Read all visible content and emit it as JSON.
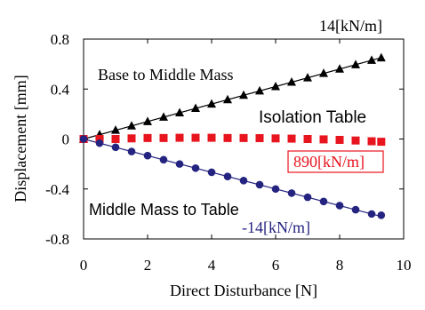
{
  "chart_data": {
    "type": "scatter",
    "xlabel": "Direct Disturbance [N]",
    "ylabel": "Displacement [mm]",
    "xlim": [
      0,
      10
    ],
    "ylim": [
      -0.8,
      0.8
    ],
    "xticks": [
      0,
      2,
      4,
      6,
      8,
      10
    ],
    "yticks": [
      0.8,
      0.4,
      0,
      -0.4,
      -0.8
    ],
    "xtick_labels": [
      "0",
      "2",
      "4",
      "6",
      "8",
      "10"
    ],
    "ytick_labels": [
      "0.8",
      "0.4",
      "0",
      "-0.4",
      "-0.8"
    ],
    "grid": false,
    "annotations": {
      "top_slope": "14[kN/m]",
      "base_to_middle": "Base to Middle Mass",
      "isolation_table": "Isolation Table",
      "table_slope": "890[kN/m]",
      "middle_to_table": "Middle Mass to Table",
      "bottom_slope": "-14[kN/m]"
    },
    "colors": {
      "base_to_middle": "#000000",
      "isolation_table": "#e8141e",
      "middle_to_table": "#242480"
    },
    "x": [
      0.0,
      0.5,
      1.0,
      1.5,
      2.0,
      2.5,
      3.0,
      3.5,
      4.0,
      4.5,
      5.0,
      5.5,
      6.0,
      6.5,
      7.0,
      7.5,
      8.0,
      8.5,
      9.0,
      9.3
    ],
    "series": [
      {
        "key": "base_to_middle",
        "marker": "triangle",
        "values": [
          0.0,
          0.035,
          0.07,
          0.105,
          0.14,
          0.175,
          0.21,
          0.245,
          0.28,
          0.315,
          0.35,
          0.385,
          0.42,
          0.455,
          0.49,
          0.525,
          0.56,
          0.595,
          0.63,
          0.65
        ]
      },
      {
        "key": "isolation_table",
        "marker": "square",
        "values": [
          0.0,
          0.0,
          0.0,
          0.005,
          0.008,
          0.008,
          0.01,
          0.01,
          0.01,
          0.008,
          0.008,
          0.007,
          0.005,
          0.003,
          0.0,
          -0.003,
          -0.007,
          -0.012,
          -0.018,
          -0.022
        ]
      },
      {
        "key": "middle_to_table",
        "marker": "circle",
        "values": [
          0.0,
          -0.033,
          -0.066,
          -0.1,
          -0.133,
          -0.166,
          -0.2,
          -0.233,
          -0.266,
          -0.3,
          -0.333,
          -0.366,
          -0.4,
          -0.433,
          -0.466,
          -0.5,
          -0.533,
          -0.566,
          -0.6,
          -0.61
        ]
      }
    ],
    "lines": [
      {
        "key": "base_to_middle",
        "from": [
          0,
          0
        ],
        "to": [
          9.3,
          0.651
        ]
      },
      {
        "key": "middle_to_table",
        "from": [
          0,
          0
        ],
        "to": [
          9.3,
          -0.62
        ]
      }
    ]
  }
}
